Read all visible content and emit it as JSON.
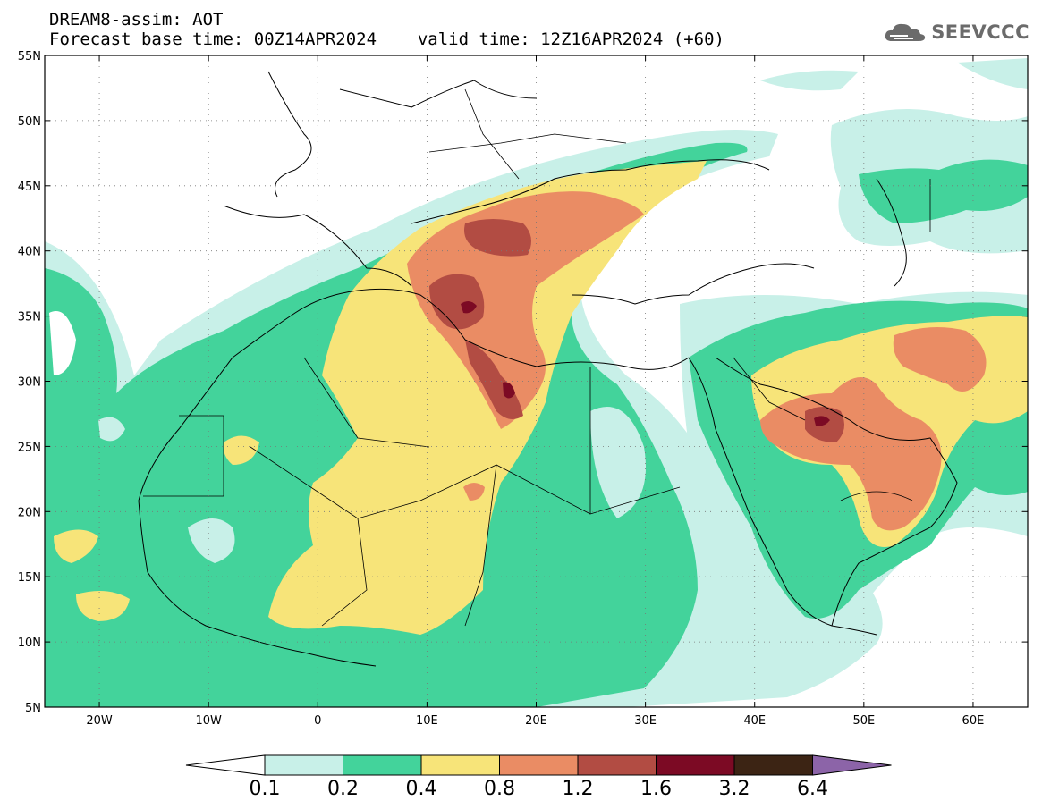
{
  "header": {
    "model_line": "DREAM8-assim: AOT",
    "base_label": "Forecast base time: 00Z14APR2024",
    "valid_label": "valid time: 12Z16APR2024 (+60)"
  },
  "logo": {
    "text": "SEEVCCC",
    "icon": "cloud-icon"
  },
  "map": {
    "lon_range": [
      -25,
      65
    ],
    "lat_range": [
      5,
      55
    ],
    "lat_ticks": [
      "5N",
      "10N",
      "15N",
      "20N",
      "25N",
      "30N",
      "35N",
      "40N",
      "45N",
      "50N",
      "55N"
    ],
    "lon_ticks": [
      "20W",
      "10W",
      "0",
      "10E",
      "20E",
      "30E",
      "40E",
      "50E",
      "60E"
    ],
    "gridlines": "dotted"
  },
  "colorbar": {
    "labels": [
      "0.1",
      "0.2",
      "0.4",
      "0.8",
      "1.2",
      "1.6",
      "3.2",
      "6.4"
    ],
    "colors": [
      "#ffffff",
      "#c8f0e8",
      "#43d39b",
      "#f7e479",
      "#ea8c64",
      "#b24c43",
      "#7c0a24",
      "#3c2414",
      "#8c64a8"
    ]
  }
}
